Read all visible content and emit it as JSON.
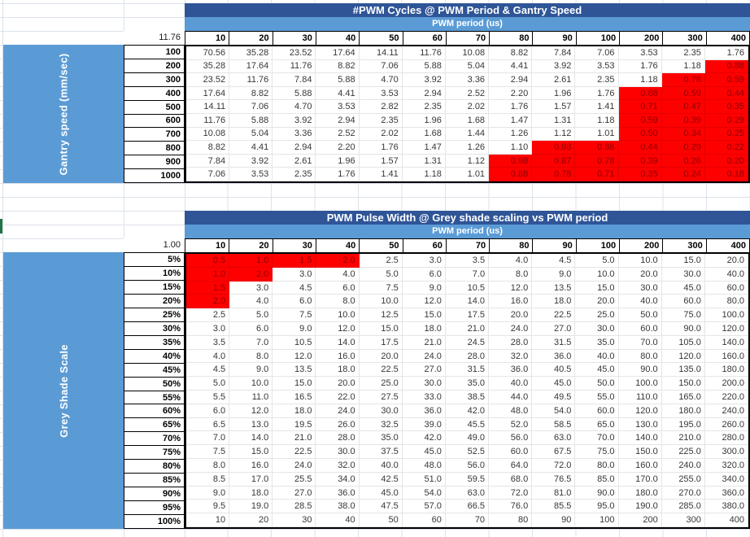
{
  "sheet": {
    "colors": {
      "title_bg": "#2f5597",
      "band_bg": "#5b9bd5",
      "sidebar_bg": "#5b9bd5",
      "red_fill": "#ff0000",
      "red_text": "#8b0000",
      "selection_marker": "#217346"
    }
  },
  "tables": [
    {
      "title": "#PWM Cycles @ PWM Period & Gantry Speed",
      "subtitle": "PWM period (us)",
      "side_label": "Gantry speed (mm/sec)",
      "corner_value": "11.76",
      "red_below": 1.0,
      "col_headers": [
        "10",
        "20",
        "30",
        "40",
        "50",
        "60",
        "70",
        "80",
        "90",
        "100",
        "200",
        "300",
        "400"
      ],
      "row_headers": [
        "100",
        "200",
        "300",
        "400",
        "500",
        "600",
        "700",
        "800",
        "900",
        "1000"
      ],
      "rows": [
        [
          "70.56",
          "35.28",
          "23.52",
          "17.64",
          "14.11",
          "11.76",
          "10.08",
          "8.82",
          "7.84",
          "7.06",
          "3.53",
          "2.35",
          "1.76"
        ],
        [
          "35.28",
          "17.64",
          "11.76",
          "8.82",
          "7.06",
          "5.88",
          "5.04",
          "4.41",
          "3.92",
          "3.53",
          "1.76",
          "1.18",
          "0.88"
        ],
        [
          "23.52",
          "11.76",
          "7.84",
          "5.88",
          "4.70",
          "3.92",
          "3.36",
          "2.94",
          "2.61",
          "2.35",
          "1.18",
          "0.78",
          "0.59"
        ],
        [
          "17.64",
          "8.82",
          "5.88",
          "4.41",
          "3.53",
          "2.94",
          "2.52",
          "2.20",
          "1.96",
          "1.76",
          "0.88",
          "0.59",
          "0.44"
        ],
        [
          "14.11",
          "7.06",
          "4.70",
          "3.53",
          "2.82",
          "2.35",
          "2.02",
          "1.76",
          "1.57",
          "1.41",
          "0.71",
          "0.47",
          "0.35"
        ],
        [
          "11.76",
          "5.88",
          "3.92",
          "2.94",
          "2.35",
          "1.96",
          "1.68",
          "1.47",
          "1.31",
          "1.18",
          "0.59",
          "0.39",
          "0.29"
        ],
        [
          "10.08",
          "5.04",
          "3.36",
          "2.52",
          "2.02",
          "1.68",
          "1.44",
          "1.26",
          "1.12",
          "1.01",
          "0.50",
          "0.34",
          "0.25"
        ],
        [
          "8.82",
          "4.41",
          "2.94",
          "2.20",
          "1.76",
          "1.47",
          "1.26",
          "1.10",
          "0.98",
          "0.88",
          "0.44",
          "0.29",
          "0.22"
        ],
        [
          "7.84",
          "3.92",
          "2.61",
          "1.96",
          "1.57",
          "1.31",
          "1.12",
          "0.98",
          "0.87",
          "0.78",
          "0.39",
          "0.26",
          "0.20"
        ],
        [
          "7.06",
          "3.53",
          "2.35",
          "1.76",
          "1.41",
          "1.18",
          "1.01",
          "0.88",
          "0.78",
          "0.71",
          "0.35",
          "0.24",
          "0.18"
        ]
      ]
    },
    {
      "title": "PWM Pulse Width @ Grey shade scaling vs PWM period",
      "subtitle": "PWM period (us)",
      "side_label": "Grey Shade Scale",
      "corner_value": "1.00",
      "red_below": 2.5,
      "col_headers": [
        "10",
        "20",
        "30",
        "40",
        "50",
        "60",
        "70",
        "80",
        "90",
        "100",
        "200",
        "300",
        "400"
      ],
      "row_headers": [
        "5%",
        "10%",
        "15%",
        "20%",
        "25%",
        "30%",
        "35%",
        "40%",
        "45%",
        "50%",
        "55%",
        "60%",
        "65%",
        "70%",
        "75%",
        "80%",
        "85%",
        "90%",
        "95%",
        "100%"
      ],
      "rows": [
        [
          "0.5",
          "1.0",
          "1.5",
          "2.0",
          "2.5",
          "3.0",
          "3.5",
          "4.0",
          "4.5",
          "5.0",
          "10.0",
          "15.0",
          "20.0"
        ],
        [
          "1.0",
          "2.0",
          "3.0",
          "4.0",
          "5.0",
          "6.0",
          "7.0",
          "8.0",
          "9.0",
          "10.0",
          "20.0",
          "30.0",
          "40.0"
        ],
        [
          "1.5",
          "3.0",
          "4.5",
          "6.0",
          "7.5",
          "9.0",
          "10.5",
          "12.0",
          "13.5",
          "15.0",
          "30.0",
          "45.0",
          "60.0"
        ],
        [
          "2.0",
          "4.0",
          "6.0",
          "8.0",
          "10.0",
          "12.0",
          "14.0",
          "16.0",
          "18.0",
          "20.0",
          "40.0",
          "60.0",
          "80.0"
        ],
        [
          "2.5",
          "5.0",
          "7.5",
          "10.0",
          "12.5",
          "15.0",
          "17.5",
          "20.0",
          "22.5",
          "25.0",
          "50.0",
          "75.0",
          "100.0"
        ],
        [
          "3.0",
          "6.0",
          "9.0",
          "12.0",
          "15.0",
          "18.0",
          "21.0",
          "24.0",
          "27.0",
          "30.0",
          "60.0",
          "90.0",
          "120.0"
        ],
        [
          "3.5",
          "7.0",
          "10.5",
          "14.0",
          "17.5",
          "21.0",
          "24.5",
          "28.0",
          "31.5",
          "35.0",
          "70.0",
          "105.0",
          "140.0"
        ],
        [
          "4.0",
          "8.0",
          "12.0",
          "16.0",
          "20.0",
          "24.0",
          "28.0",
          "32.0",
          "36.0",
          "40.0",
          "80.0",
          "120.0",
          "160.0"
        ],
        [
          "4.5",
          "9.0",
          "13.5",
          "18.0",
          "22.5",
          "27.0",
          "31.5",
          "36.0",
          "40.5",
          "45.0",
          "90.0",
          "135.0",
          "180.0"
        ],
        [
          "5.0",
          "10.0",
          "15.0",
          "20.0",
          "25.0",
          "30.0",
          "35.0",
          "40.0",
          "45.0",
          "50.0",
          "100.0",
          "150.0",
          "200.0"
        ],
        [
          "5.5",
          "11.0",
          "16.5",
          "22.0",
          "27.5",
          "33.0",
          "38.5",
          "44.0",
          "49.5",
          "55.0",
          "110.0",
          "165.0",
          "220.0"
        ],
        [
          "6.0",
          "12.0",
          "18.0",
          "24.0",
          "30.0",
          "36.0",
          "42.0",
          "48.0",
          "54.0",
          "60.0",
          "120.0",
          "180.0",
          "240.0"
        ],
        [
          "6.5",
          "13.0",
          "19.5",
          "26.0",
          "32.5",
          "39.0",
          "45.5",
          "52.0",
          "58.5",
          "65.0",
          "130.0",
          "195.0",
          "260.0"
        ],
        [
          "7.0",
          "14.0",
          "21.0",
          "28.0",
          "35.0",
          "42.0",
          "49.0",
          "56.0",
          "63.0",
          "70.0",
          "140.0",
          "210.0",
          "280.0"
        ],
        [
          "7.5",
          "15.0",
          "22.5",
          "30.0",
          "37.5",
          "45.0",
          "52.5",
          "60.0",
          "67.5",
          "75.0",
          "150.0",
          "225.0",
          "300.0"
        ],
        [
          "8.0",
          "16.0",
          "24.0",
          "32.0",
          "40.0",
          "48.0",
          "56.0",
          "64.0",
          "72.0",
          "80.0",
          "160.0",
          "240.0",
          "320.0"
        ],
        [
          "8.5",
          "17.0",
          "25.5",
          "34.0",
          "42.5",
          "51.0",
          "59.5",
          "68.0",
          "76.5",
          "85.0",
          "170.0",
          "255.0",
          "340.0"
        ],
        [
          "9.0",
          "18.0",
          "27.0",
          "36.0",
          "45.0",
          "54.0",
          "63.0",
          "72.0",
          "81.0",
          "90.0",
          "180.0",
          "270.0",
          "360.0"
        ],
        [
          "9.5",
          "19.0",
          "28.5",
          "38.0",
          "47.5",
          "57.0",
          "66.5",
          "76.0",
          "85.5",
          "95.0",
          "190.0",
          "285.0",
          "380.0"
        ],
        [
          "10",
          "20",
          "30",
          "40",
          "50",
          "60",
          "70",
          "80",
          "90",
          "100",
          "200",
          "300",
          "400"
        ]
      ]
    }
  ]
}
